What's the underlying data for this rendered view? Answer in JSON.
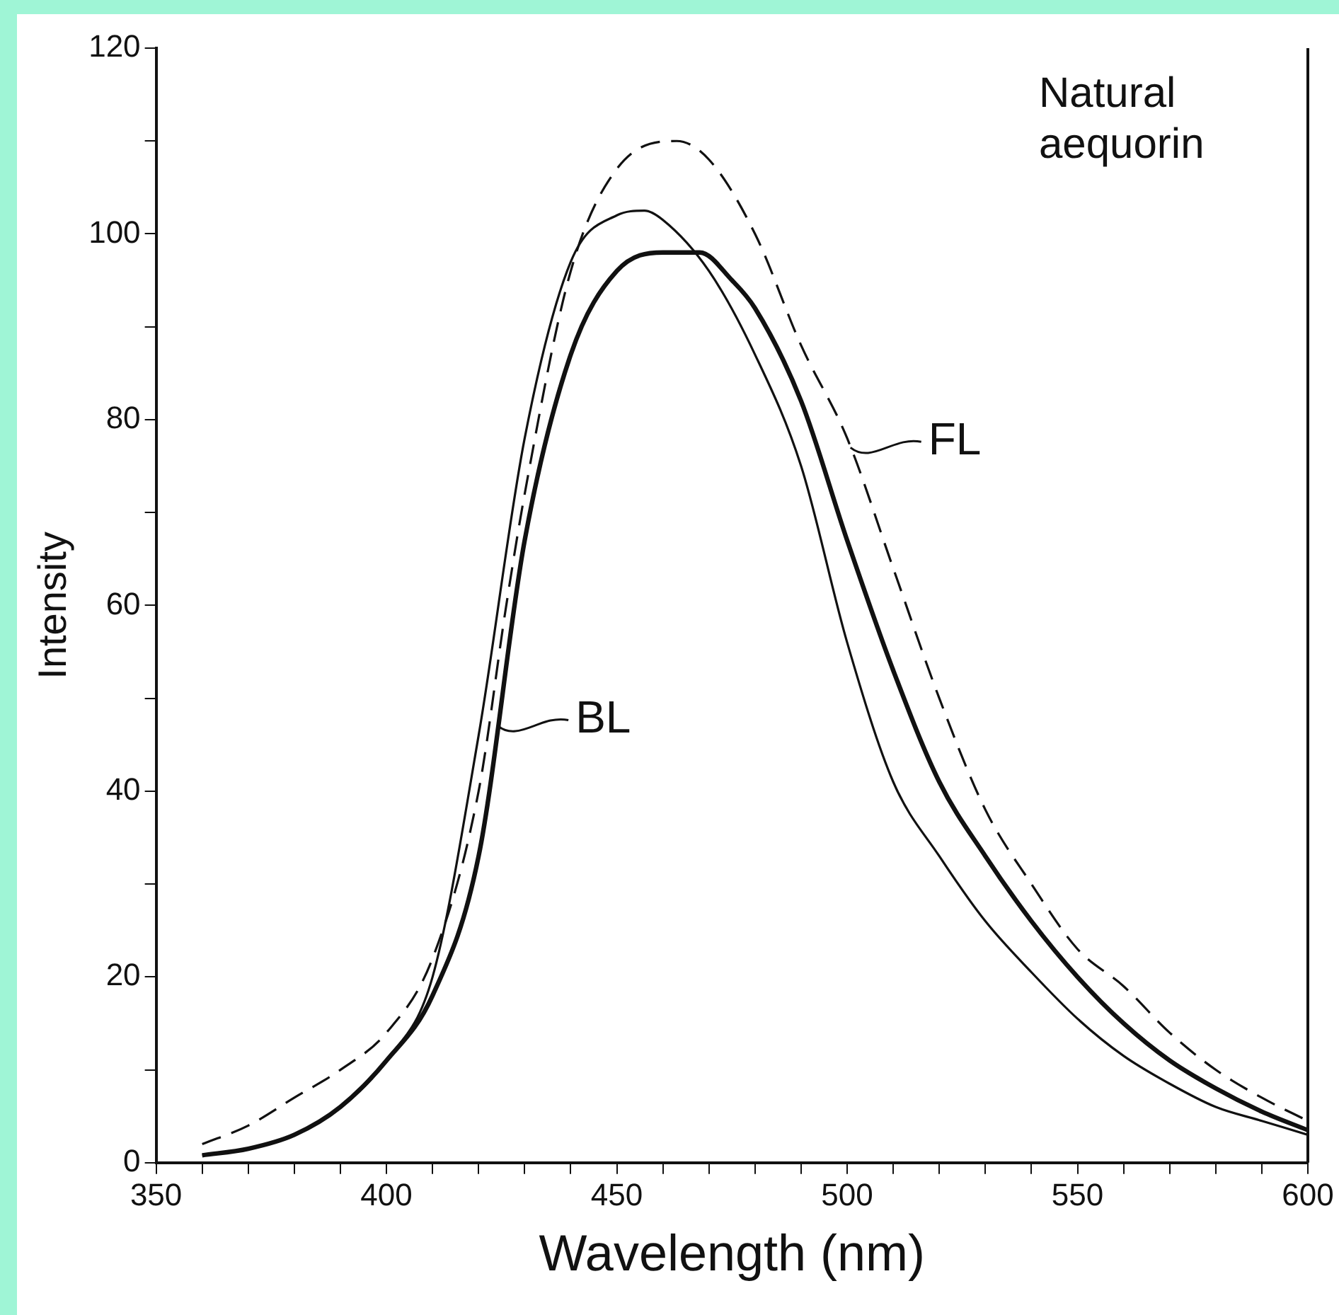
{
  "chart_data": {
    "type": "line",
    "title": "Natural aequorin",
    "xlabel": "Wavelength (nm)",
    "ylabel": "Intensity",
    "xlim": [
      350,
      600
    ],
    "ylim": [
      0,
      120
    ],
    "xticks": [
      350,
      {
        "value": 360,
        "label": null
      },
      {
        "value": 370,
        "label": null
      },
      {
        "value": 380,
        "label": null
      },
      {
        "value": 390,
        "label": null
      },
      400,
      {
        "value": 410,
        "label": null
      },
      {
        "value": 420,
        "label": null
      },
      {
        "value": 430,
        "label": null
      },
      {
        "value": 440,
        "label": null
      },
      450,
      {
        "value": 460,
        "label": null
      },
      {
        "value": 470,
        "label": null
      },
      {
        "value": 480,
        "label": null
      },
      {
        "value": 490,
        "label": null
      },
      500,
      {
        "value": 510,
        "label": null
      },
      {
        "value": 520,
        "label": null
      },
      {
        "value": 530,
        "label": null
      },
      {
        "value": 540,
        "label": null
      },
      550,
      {
        "value": 560,
        "label": null
      },
      {
        "value": 570,
        "label": null
      },
      {
        "value": 580,
        "label": null
      },
      {
        "value": 590,
        "label": null
      },
      600
    ],
    "yticks": [
      0,
      {
        "value": 10,
        "label": null
      },
      20,
      {
        "value": 30,
        "label": null
      },
      40,
      {
        "value": 50,
        "label": null
      },
      60,
      {
        "value": 70,
        "label": null
      },
      80,
      {
        "value": 90,
        "label": null
      },
      100,
      {
        "value": 110,
        "label": null
      },
      120
    ],
    "grid": false,
    "legend": false,
    "marker": "none",
    "series": [
      {
        "color": "#111111",
        "line_style": "solid",
        "x": [
          360,
          370,
          380,
          390,
          400,
          410,
          420,
          430,
          440,
          450,
          456,
          460,
          470,
          480,
          490,
          500,
          510,
          520,
          530,
          540,
          550,
          560,
          570,
          580,
          590,
          600
        ],
        "values": [
          0.8,
          1.5,
          3,
          6,
          11,
          20,
          46,
          78,
          97,
          102,
          102.5,
          101.5,
          96,
          87,
          75,
          56,
          41,
          33,
          26,
          20.5,
          15.5,
          11.5,
          8.5,
          6,
          4.5,
          3
        ]
      },
      {
        "color": "#111111",
        "line_style": "solid",
        "x": [
          360,
          370,
          380,
          390,
          400,
          410,
          420,
          430,
          440,
          450,
          460,
          468,
          475,
          480,
          490,
          500,
          510,
          520,
          530,
          540,
          550,
          560,
          570,
          580,
          590,
          600
        ],
        "values": [
          0.8,
          1.5,
          3,
          6,
          11,
          18,
          33,
          67,
          87,
          96,
          98,
          98,
          95,
          92,
          82,
          67,
          53,
          41,
          33,
          26,
          20,
          15,
          11,
          8,
          5.5,
          3.5
        ]
      },
      {
        "color": "#111111",
        "line_style": "dashed",
        "x": [
          360,
          370,
          380,
          390,
          400,
          410,
          420,
          426,
          430,
          440,
          450,
          463,
          470,
          480,
          490,
          500,
          510,
          520,
          530,
          540,
          550,
          560,
          570,
          580,
          590,
          600
        ],
        "values": [
          2,
          4,
          7,
          10,
          14,
          22,
          40,
          60,
          72,
          96,
          107,
          110,
          108,
          100,
          88,
          78,
          64,
          50,
          38,
          30,
          23,
          19,
          14,
          10,
          7,
          4.5
        ]
      }
    ],
    "annotations": [
      "BL",
      "FL"
    ]
  }
}
